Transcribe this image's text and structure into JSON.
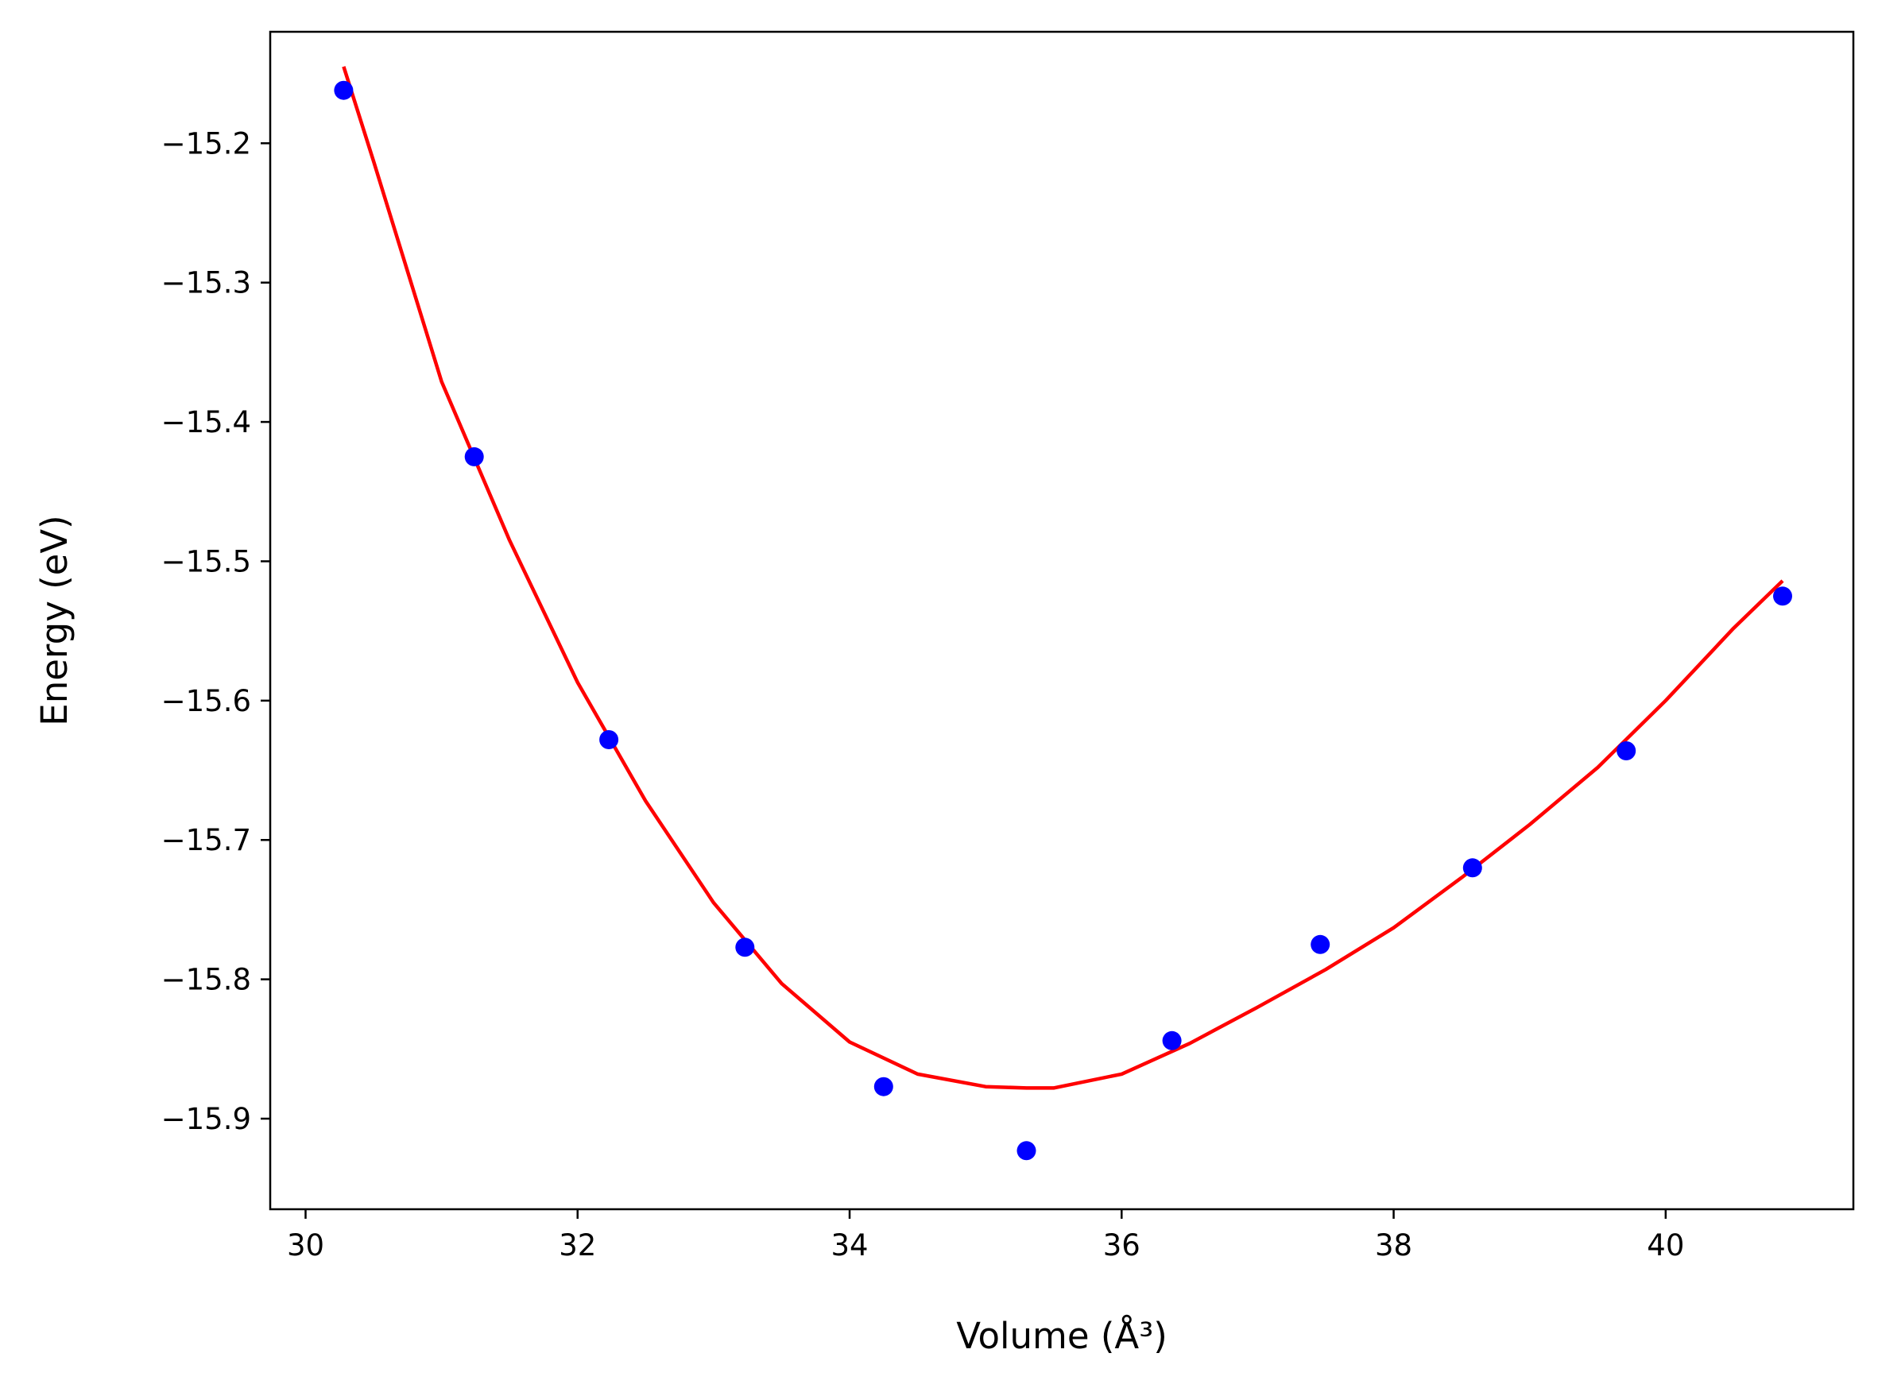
{
  "chart_data": {
    "type": "scatter",
    "title": "",
    "xlabel": "Volume (Å³)",
    "ylabel": "Energy (eV)",
    "xlim": [
      29.74,
      41.38
    ],
    "ylim": [
      -15.965,
      -15.12
    ],
    "x_ticks": [
      30,
      32,
      34,
      36,
      38,
      40
    ],
    "y_ticks": [
      -15.2,
      -15.3,
      -15.4,
      -15.5,
      -15.6,
      -15.7,
      -15.8,
      -15.9
    ],
    "x_tick_labels": [
      "30",
      "32",
      "34",
      "36",
      "38",
      "40"
    ],
    "y_tick_labels": [
      "−15.2",
      "−15.3",
      "−15.4",
      "−15.5",
      "−15.6",
      "−15.7",
      "−15.8",
      "−15.9"
    ],
    "grid": false,
    "series": [
      {
        "type": "scatter",
        "color": "#0000ff",
        "x": [
          30.28,
          31.24,
          32.23,
          33.23,
          34.25,
          35.3,
          36.37,
          37.46,
          38.58,
          39.71,
          40.86
        ],
        "y": [
          -15.162,
          -15.425,
          -15.628,
          -15.777,
          -15.877,
          -15.923,
          -15.844,
          -15.775,
          -15.72,
          -15.636,
          -15.525
        ]
      },
      {
        "type": "line",
        "color": "#ff0000",
        "x": [
          30.28,
          30.5,
          31.0,
          31.5,
          32.0,
          32.5,
          33.0,
          33.5,
          34.0,
          34.5,
          35.0,
          35.3,
          35.5,
          36.0,
          36.5,
          37.0,
          37.5,
          38.0,
          38.5,
          39.0,
          39.5,
          40.0,
          40.5,
          40.86
        ],
        "y": [
          -15.145,
          -15.213,
          -15.371,
          -15.485,
          -15.587,
          -15.672,
          -15.745,
          -15.803,
          -15.845,
          -15.868,
          -15.877,
          -15.878,
          -15.878,
          -15.868,
          -15.846,
          -15.82,
          -15.793,
          -15.763,
          -15.727,
          -15.689,
          -15.648,
          -15.6,
          -15.548,
          -15.514
        ]
      }
    ]
  }
}
